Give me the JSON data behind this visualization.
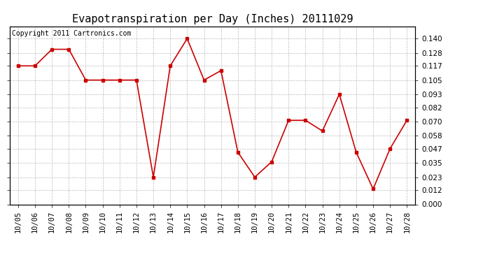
{
  "title": "Evapotranspiration per Day (Inches) 20111029",
  "copyright": "Copyright 2011 Cartronics.com",
  "x_labels": [
    "10/05",
    "10/06",
    "10/07",
    "10/08",
    "10/09",
    "10/10",
    "10/11",
    "10/12",
    "10/13",
    "10/14",
    "10/15",
    "10/16",
    "10/17",
    "10/18",
    "10/19",
    "10/20",
    "10/21",
    "10/22",
    "10/23",
    "10/24",
    "10/25",
    "10/26",
    "10/27",
    "10/28"
  ],
  "y_values": [
    0.117,
    0.117,
    0.131,
    0.131,
    0.105,
    0.105,
    0.105,
    0.105,
    0.023,
    0.117,
    0.14,
    0.105,
    0.113,
    0.044,
    0.023,
    0.036,
    0.071,
    0.071,
    0.062,
    0.093,
    0.044,
    0.013,
    0.047,
    0.071
  ],
  "line_color": "#cc0000",
  "marker": "s",
  "marker_size": 3,
  "ylim": [
    0.0,
    0.1505
  ],
  "yticks": [
    0.0,
    0.012,
    0.023,
    0.035,
    0.047,
    0.058,
    0.07,
    0.082,
    0.093,
    0.105,
    0.117,
    0.128,
    0.14
  ],
  "grid_color": "#bbbbbb",
  "background_color": "#ffffff",
  "title_fontsize": 11,
  "copyright_fontsize": 7,
  "tick_fontsize": 7.5
}
